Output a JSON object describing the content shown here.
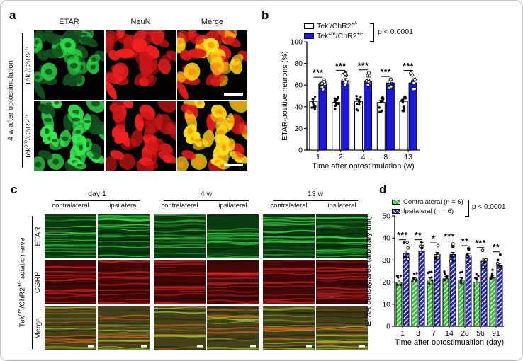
{
  "panel_a": {
    "letter": "a",
    "column_headers": [
      "ETAR",
      "NeuN",
      "Merge"
    ],
    "outer_label": "4 w after optostimulation"
  },
  "genotype_control": {
    "base": "Tek",
    "sup1": "-",
    "mid": "/ChR2",
    "sup2": "+/-"
  },
  "genotype_cre": {
    "base": "Tek",
    "sup1": "cre",
    "mid": "/ChR2",
    "sup2": "+/-"
  },
  "panel_b": {
    "letter": "b"
  },
  "panel_c": {
    "letter": "c",
    "time_headers": [
      "day 1",
      "4 w",
      "13 w"
    ],
    "side_headers": [
      "contralateral",
      "ipsilateral"
    ],
    "outer_label_tail": "sciatic nerve",
    "row_labels": [
      "ETAR",
      "CGRP",
      "Merge"
    ]
  },
  "panel_d": {
    "letter": "d"
  },
  "chart_data": [
    {
      "panel": "b",
      "type": "bar",
      "categories": [
        "1",
        "2",
        "4",
        "8",
        "13"
      ],
      "series": [
        {
          "name": "Tek⁻/ChR2⁺/⁻",
          "values": [
            45,
            44,
            45,
            44,
            45
          ],
          "errors": [
            2,
            2,
            2,
            2,
            2
          ],
          "color": "#ffffff",
          "hatch": false,
          "n": 10
        },
        {
          "name": "Tekᶜʳᵉ/ChR2⁺/⁻",
          "values": [
            61,
            64,
            63,
            62,
            62
          ],
          "errors": [
            2.5,
            2,
            2,
            2,
            2
          ],
          "color": "#1c18dc",
          "hatch": false,
          "n": 10
        }
      ],
      "significance": [
        "***",
        "***",
        "***",
        "***",
        "***"
      ],
      "p_value": "p < 0.0001",
      "xlabel": "Time after optostimulation (w)",
      "ylabel": "ETAR-positive neurons (%)",
      "ylim": [
        0,
        100
      ],
      "yticks": [
        0,
        20,
        40,
        60,
        80,
        100
      ],
      "legend_position": "top"
    },
    {
      "panel": "d",
      "type": "bar",
      "categories": [
        "1",
        "3",
        "7",
        "14",
        "28",
        "56",
        "91"
      ],
      "series": [
        {
          "name": "Contralateral (n = 6)",
          "values": [
            20,
            21,
            21,
            21.5,
            21,
            20,
            22
          ],
          "errors": [
            1,
            1,
            1,
            1,
            1,
            1,
            1
          ],
          "color": "#2fca2f",
          "hatch": true,
          "n": 6
        },
        {
          "name": "Ipsilateral (n = 6)",
          "values": [
            33,
            34,
            32.5,
            32.5,
            32,
            29.5,
            27.5
          ],
          "errors": [
            1.2,
            1.2,
            1,
            1,
            1,
            1,
            1
          ],
          "color": "#2323cc",
          "hatch": true,
          "n": 6
        }
      ],
      "significance": [
        "***",
        "**",
        "*",
        "***",
        "**",
        "***",
        "**"
      ],
      "p_value": "p < 0.0001",
      "xlabel": "Time after optostimualtion (day)",
      "ylabel": "ETAR density/area (arbitrary unit)",
      "ylim": [
        0,
        50
      ],
      "yticks": [
        0,
        10,
        20,
        30,
        40,
        50
      ],
      "legend_position": "top"
    }
  ]
}
